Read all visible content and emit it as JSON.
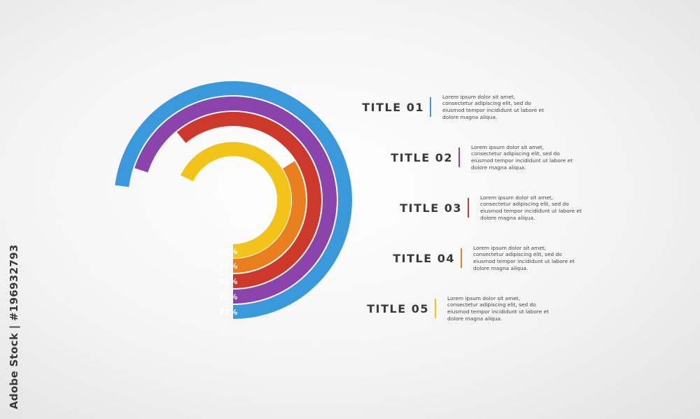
{
  "chart_data": {
    "type": "radial-bar",
    "series": [
      {
        "label": "73%",
        "value": 73,
        "color": "#3a99db"
      },
      {
        "label": "70%",
        "value": 70,
        "color": "#8a44ac"
      },
      {
        "label": "61%",
        "value": 61,
        "color": "#cc392b"
      },
      {
        "label": "34%",
        "value": 34,
        "color": "#ea7f1f"
      },
      {
        "label": "68%",
        "value": 68,
        "color": "#f2c41a"
      }
    ]
  },
  "items": [
    {
      "title": "TITLE 01",
      "color": "#3a99db",
      "desc": "Lorem ipsum dolor sit amet, consectetur adipiscing elit, sed do eiusmod tempor incididunt ut labore et dolore magna aliqua."
    },
    {
      "title": "TITLE 02",
      "color": "#8a44ac",
      "desc": "Lorem ipsum dolor sit amet, consectetur adipiscing elit, sed do eiusmod tempor incididunt ut labore et dolore magna aliqua."
    },
    {
      "title": "TITLE 03",
      "color": "#cc392b",
      "desc": "Lorem ipsum dolor sit amet, consectetur adipiscing elit, sed do eiusmod tempor incididunt ut labore et dolore magna aliqua."
    },
    {
      "title": "TITLE 04",
      "color": "#ea7f1f",
      "desc": "Lorem ipsum dolor sit amet, consectetur adipiscing elit, sed do eiusmod tempor incididunt ut labore et dolore magna aliqua."
    },
    {
      "title": "TITLE 05",
      "color": "#f2c41a",
      "desc": "Lorem ipsum dolor sit amet, consectetur adipiscing elit, sed do eiusmod tempor incididunt ut labore et dolore magna aliqua."
    }
  ],
  "credit": "Adobe Stock | #196932793"
}
